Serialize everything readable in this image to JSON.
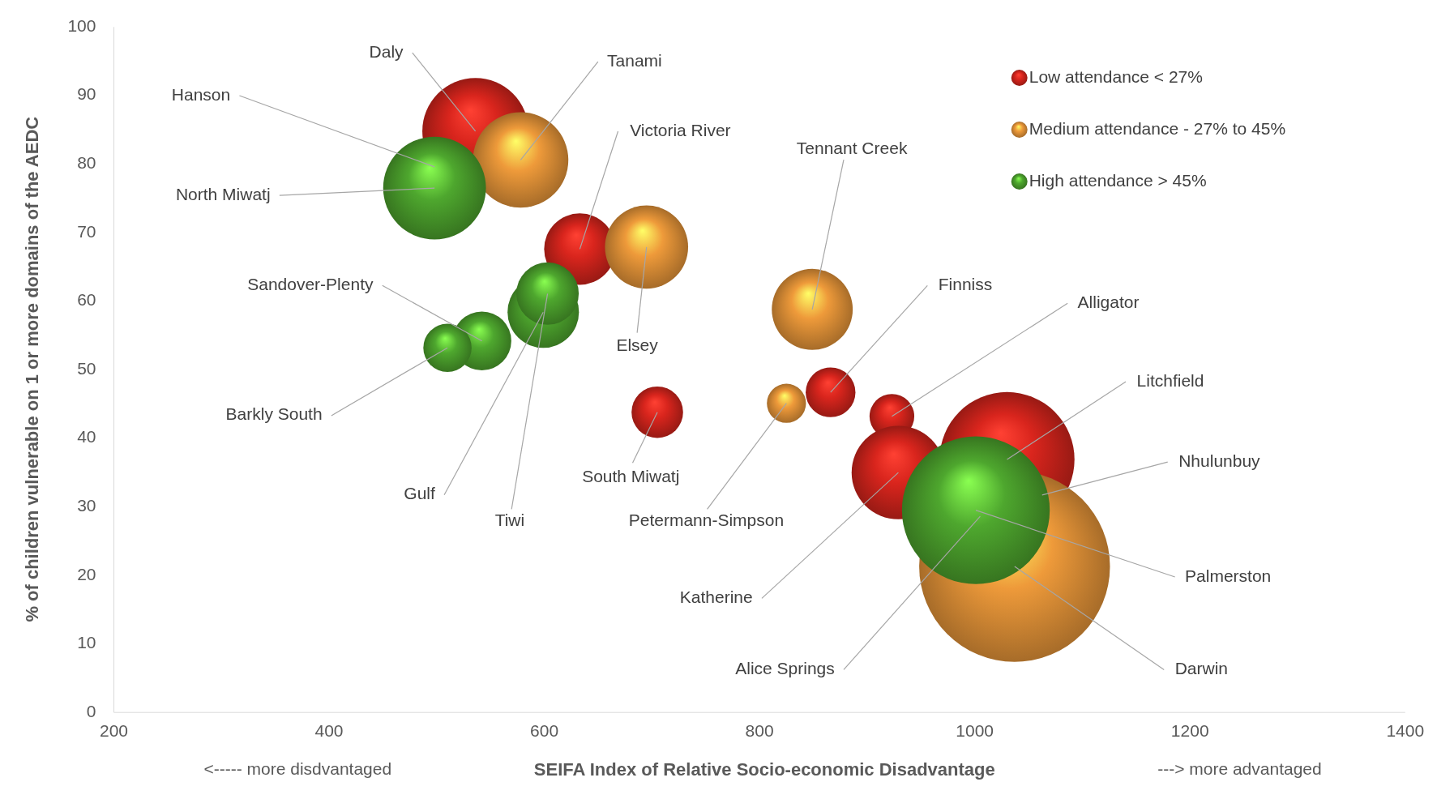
{
  "chart_data": {
    "type": "bubble",
    "xlabel": "SEIFA Index of Relative Socio-economic Disadvantage",
    "ylabel": "% of children vulnerable on 1 or more domains of the AEDC",
    "xlim": [
      200,
      1400
    ],
    "xticks": [
      200,
      400,
      600,
      800,
      1000,
      1200,
      1400
    ],
    "ylim": [
      0,
      100
    ],
    "yticks": [
      0,
      10,
      20,
      30,
      40,
      50,
      60,
      70,
      80,
      90,
      100
    ],
    "grid": false,
    "legend": "top right",
    "marker": "circle",
    "series": [
      {
        "name": "Low attendance < 27%",
        "color": "#d9251d",
        "x": [
          536,
          633,
          705,
          866,
          923,
          929,
          1030
        ],
        "values": [
          84.8,
          67.6,
          43.8,
          46.7,
          43.2,
          35.0,
          36.9
        ],
        "sizes": [
          0.31,
          0.14,
          0.073,
          0.068,
          0.055,
          0.24,
          0.5
        ]
      },
      {
        "name": "Medium attendance - 27% to 45%",
        "color": "#ee9a3a",
        "x": [
          578,
          695,
          849,
          825,
          1037
        ],
        "values": [
          80.6,
          67.9,
          58.8,
          45.1,
          21.3
        ],
        "sizes": [
          0.25,
          0.19,
          0.18,
          0.042,
          1
        ]
      },
      {
        "name": "High attendance > 45%",
        "color": "#4ea72e",
        "x": [
          498,
          542,
          510,
          599,
          603,
          1001
        ],
        "values": [
          76.5,
          54.2,
          53.2,
          58.4,
          61.1,
          29.5
        ],
        "sizes": [
          0.29,
          0.095,
          0.064,
          0.14,
          0.107,
          0.6
        ]
      }
    ],
    "annotations": [
      "<----- more disdvantaged",
      "---> more advantaged",
      {
        "text": "Daly",
        "x": 536,
        "y": 84.8
      },
      {
        "text": "Tanami",
        "x": 578,
        "y": 80.6
      },
      {
        "text": "Hanson",
        "x": 498,
        "y": 79.6
      },
      {
        "text": "Victoria River",
        "x": 633,
        "y": 67.6
      },
      {
        "text": "Tennant Creek",
        "x": 849,
        "y": 58.8
      },
      {
        "text": "North Miwatj",
        "x": 498,
        "y": 76.5
      },
      {
        "text": "Sandover-Plenty",
        "x": 542,
        "y": 54.2
      },
      {
        "text": "Finniss",
        "x": 866,
        "y": 46.7
      },
      {
        "text": "Alligator",
        "x": 923,
        "y": 43.2
      },
      {
        "text": "Elsey",
        "x": 695,
        "y": 67.9
      },
      {
        "text": "Litchfield",
        "x": 1030,
        "y": 36.9
      },
      {
        "text": "Barkly South",
        "x": 510,
        "y": 53.2
      },
      "Nhulunbuy",
      {
        "text": "South Miwatj",
        "x": 705,
        "y": 43.8
      },
      {
        "text": "Gulf",
        "x": 599,
        "y": 58.4
      },
      {
        "text": "Tiwi",
        "x": 603,
        "y": 61.1
      },
      {
        "text": "Petermann-Simpson",
        "x": 825,
        "y": 45.1
      },
      {
        "text": "Palmerston",
        "x": 1001,
        "y": 29.5
      },
      {
        "text": "Katherine",
        "x": 929,
        "y": 35.0
      },
      "Alice Springs",
      {
        "text": "Darwin",
        "x": 1037,
        "y": 21.3
      }
    ]
  }
}
